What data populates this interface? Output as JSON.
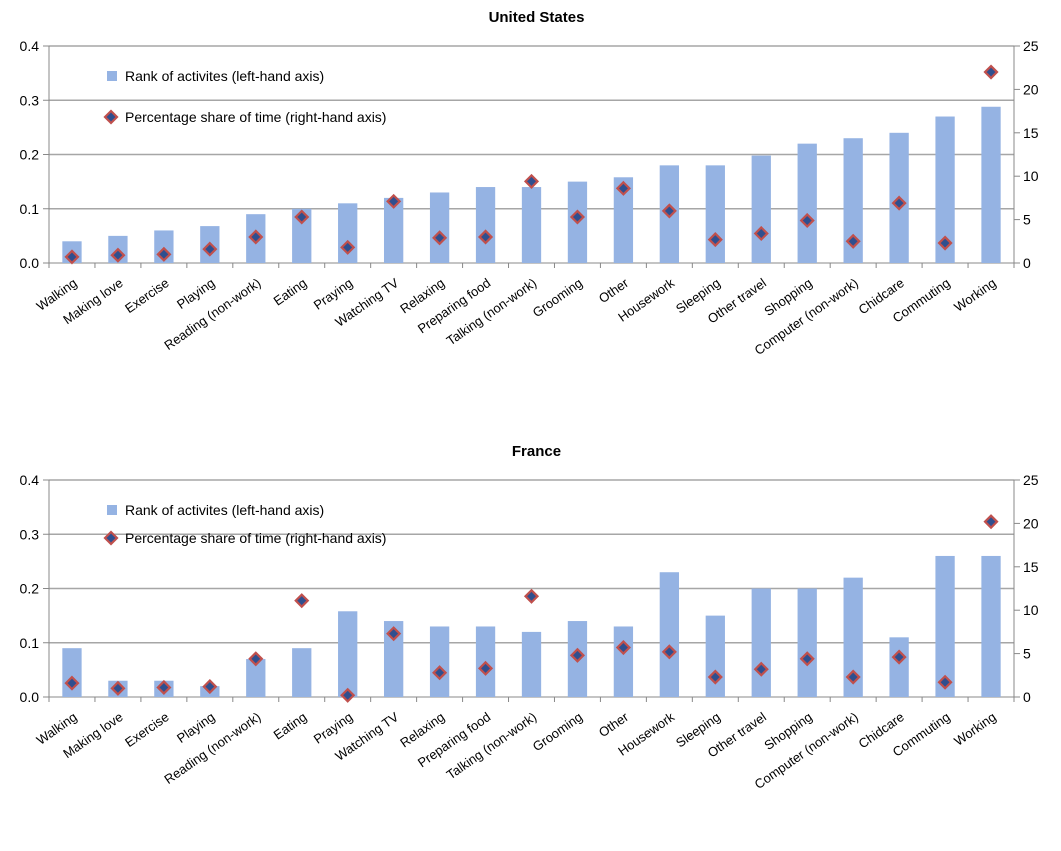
{
  "colors": {
    "bar": "#95b3e3",
    "marker_fill": "#2f4f8f",
    "marker_stroke": "#c0504d",
    "axis": "#888888",
    "grid": "#a6a6a6"
  },
  "chart_data": [
    {
      "type": "bar",
      "title": "United States",
      "categories": [
        "Walking",
        "Making love",
        "Exercise",
        "Playing",
        "Reading (non-work)",
        "Eating",
        "Praying",
        "Watching TV",
        "Relaxing",
        "Preparing food",
        "Talking (non-work)",
        "Grooming",
        "Other",
        "Housework",
        "Sleeping",
        "Other travel",
        "Shopping",
        "Computer (non-work)",
        "Chidcare",
        "Commuting",
        "Working"
      ],
      "left_axis": {
        "ylim": [
          0,
          0.4
        ],
        "ticks": [
          "0.0",
          "0.1",
          "0.2",
          "0.3",
          "0.4"
        ]
      },
      "right_axis": {
        "ylim": [
          0,
          25
        ],
        "ticks": [
          "0",
          "5",
          "10",
          "15",
          "20",
          "25"
        ]
      },
      "legend": [
        "Rank of activites (left-hand axis)",
        "Percentage share of time (right-hand axis)"
      ],
      "series": [
        {
          "name": "Rank of activites (left-hand axis)",
          "kind": "bar",
          "axis": "left",
          "values": [
            0.04,
            0.05,
            0.06,
            0.068,
            0.09,
            0.1,
            0.11,
            0.12,
            0.13,
            0.14,
            0.14,
            0.15,
            0.158,
            0.18,
            0.18,
            0.198,
            0.22,
            0.23,
            0.24,
            0.27,
            0.288
          ]
        },
        {
          "name": "Percentage share of time (right-hand axis)",
          "kind": "marker",
          "axis": "right",
          "values": [
            0.7,
            0.9,
            1.0,
            1.6,
            3.0,
            5.3,
            1.8,
            7.1,
            2.9,
            3.0,
            9.4,
            5.3,
            8.6,
            6.0,
            2.7,
            3.4,
            4.9,
            2.5,
            6.9,
            2.3,
            22.0
          ]
        }
      ]
    },
    {
      "type": "bar",
      "title": "France",
      "categories": [
        "Walking",
        "Making love",
        "Exercise",
        "Playing",
        "Reading (non-work)",
        "Eating",
        "Praying",
        "Watching TV",
        "Relaxing",
        "Preparing food",
        "Talking (non-work)",
        "Grooming",
        "Other",
        "Housework",
        "Sleeping",
        "Other travel",
        "Shopping",
        "Computer (non-work)",
        "Chidcare",
        "Commuting",
        "Working"
      ],
      "left_axis": {
        "ylim": [
          0,
          0.4
        ],
        "ticks": [
          "0.0",
          "0.1",
          "0.2",
          "0.3",
          "0.4"
        ]
      },
      "right_axis": {
        "ylim": [
          0,
          25
        ],
        "ticks": [
          "0",
          "5",
          "10",
          "15",
          "20",
          "25"
        ]
      },
      "legend": [
        "Rank of activites (left-hand axis)",
        "Percentage share of time (right-hand axis)"
      ],
      "series": [
        {
          "name": "Rank of activites (left-hand axis)",
          "kind": "bar",
          "axis": "left",
          "values": [
            0.09,
            0.03,
            0.03,
            0.02,
            0.07,
            0.09,
            0.158,
            0.14,
            0.13,
            0.13,
            0.12,
            0.14,
            0.13,
            0.23,
            0.15,
            0.2,
            0.2,
            0.22,
            0.11,
            0.26,
            0.26
          ]
        },
        {
          "name": "Percentage share of time (right-hand axis)",
          "kind": "marker",
          "axis": "right",
          "values": [
            1.6,
            1.0,
            1.1,
            1.2,
            4.4,
            11.1,
            0.2,
            7.3,
            2.8,
            3.3,
            11.6,
            4.8,
            5.7,
            5.2,
            2.3,
            3.2,
            4.4,
            2.3,
            4.6,
            1.7,
            20.2
          ]
        }
      ]
    }
  ]
}
